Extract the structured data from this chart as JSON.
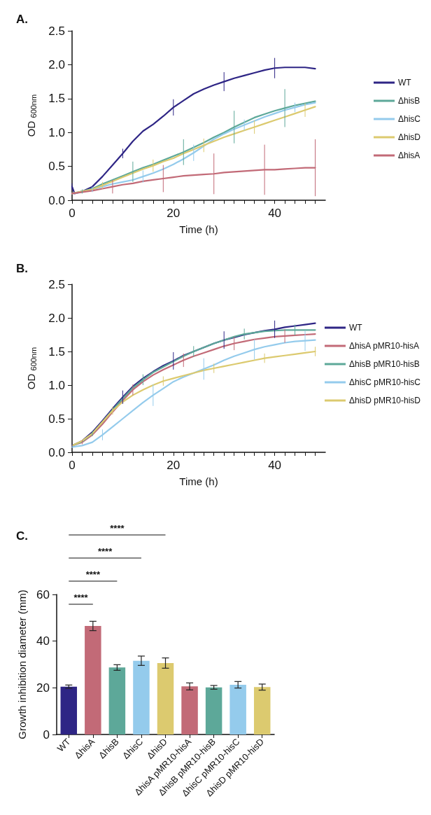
{
  "chart_data": [
    {
      "type": "line",
      "title": "A.",
      "xlabel": "Time (h)",
      "ylabel": "OD $_{600nm}$",
      "legend": "right",
      "marker": "none",
      "line_style": "solid",
      "xlim": [
        0,
        50
      ],
      "ylim": [
        0,
        2.5
      ],
      "xticks": [
        0,
        {
          "value": 2,
          "label": null
        },
        {
          "value": 4,
          "label": null
        },
        {
          "value": 6,
          "label": null
        },
        {
          "value": 8,
          "label": null
        },
        {
          "value": 10,
          "label": null
        },
        {
          "value": 12,
          "label": null
        },
        {
          "value": 14,
          "label": null
        },
        {
          "value": 16,
          "label": null
        },
        {
          "value": 18,
          "label": null
        },
        20,
        {
          "value": 22,
          "label": null
        },
        {
          "value": 24,
          "label": null
        },
        {
          "value": 26,
          "label": null
        },
        {
          "value": 28,
          "label": null
        },
        {
          "value": 30,
          "label": null
        },
        {
          "value": 32,
          "label": null
        },
        {
          "value": 34,
          "label": null
        },
        {
          "value": 36,
          "label": null
        },
        {
          "value": 38,
          "label": null
        },
        40,
        {
          "value": 42,
          "label": null
        },
        {
          "value": 44,
          "label": null
        },
        {
          "value": 46,
          "label": null
        },
        {
          "value": 48,
          "label": null
        }
      ],
      "yticks": [
        {
          "value": 0,
          "label": "0.0"
        },
        0.5,
        {
          "value": 1,
          "label": "1.0"
        },
        1.5,
        {
          "value": 2,
          "label": "2.0"
        },
        2.5
      ],
      "series": [
        {
          "name": "WT",
          "color": "#2e2585",
          "x": [
            0,
            0.5,
            2,
            4,
            6,
            8,
            10,
            12,
            14,
            16,
            18,
            20,
            22,
            24,
            26,
            28,
            30,
            32,
            34,
            36,
            38,
            40,
            42,
            44,
            46,
            48
          ],
          "values": [
            0.2,
            0.1,
            0.13,
            0.2,
            0.35,
            0.52,
            0.69,
            0.87,
            1.02,
            1.12,
            1.24,
            1.37,
            1.47,
            1.57,
            1.64,
            1.7,
            1.75,
            1.8,
            1.84,
            1.88,
            1.92,
            1.95,
            1.96,
            1.96,
            1.96,
            1.94
          ],
          "errors": [
            0.05,
            null,
            null,
            null,
            null,
            null,
            0.07,
            null,
            null,
            null,
            null,
            0.12,
            null,
            null,
            null,
            null,
            0.14,
            null,
            null,
            null,
            null,
            0.15,
            null,
            null,
            null,
            null
          ]
        },
        {
          "name": "ΔhisB",
          "color": "#5da899",
          "x": [
            0,
            2,
            4,
            6,
            8,
            10,
            12,
            14,
            16,
            18,
            20,
            22,
            24,
            26,
            28,
            30,
            32,
            34,
            36,
            38,
            40,
            42,
            44,
            46,
            48
          ],
          "values": [
            0.1,
            0.13,
            0.17,
            0.24,
            0.3,
            0.36,
            0.42,
            0.48,
            0.53,
            0.59,
            0.65,
            0.71,
            0.78,
            0.85,
            0.93,
            1.0,
            1.08,
            1.15,
            1.22,
            1.27,
            1.32,
            1.36,
            1.4,
            1.43,
            1.46
          ],
          "errors": [
            null,
            0.03,
            null,
            null,
            null,
            null,
            0.15,
            null,
            null,
            null,
            null,
            0.19,
            null,
            null,
            null,
            null,
            0.24,
            null,
            null,
            null,
            null,
            0.28,
            null,
            null,
            null
          ]
        },
        {
          "name": "ΔhisC",
          "color": "#94cbec",
          "x": [
            0,
            2,
            4,
            6,
            8,
            10,
            12,
            14,
            16,
            18,
            20,
            22,
            24,
            26,
            28,
            30,
            32,
            34,
            36,
            38,
            40,
            42,
            44,
            46,
            48
          ],
          "values": [
            0.1,
            0.12,
            0.16,
            0.2,
            0.24,
            0.27,
            0.3,
            0.35,
            0.4,
            0.46,
            0.53,
            0.61,
            0.7,
            0.8,
            0.9,
            0.98,
            1.05,
            1.11,
            1.17,
            1.23,
            1.28,
            1.33,
            1.37,
            1.41,
            1.44
          ],
          "errors": [
            null,
            null,
            0.04,
            null,
            null,
            null,
            null,
            0.09,
            null,
            null,
            null,
            null,
            0.12,
            null,
            null,
            null,
            null,
            0.08,
            null,
            null,
            null,
            null,
            0.07,
            null,
            null
          ]
        },
        {
          "name": "ΔhisD",
          "color": "#dcca6f",
          "x": [
            0,
            2,
            4,
            6,
            8,
            10,
            12,
            14,
            16,
            18,
            20,
            22,
            24,
            26,
            28,
            30,
            32,
            34,
            36,
            38,
            40,
            42,
            44,
            46,
            48
          ],
          "values": [
            0.1,
            0.13,
            0.16,
            0.22,
            0.28,
            0.34,
            0.4,
            0.46,
            0.51,
            0.57,
            0.62,
            0.69,
            0.75,
            0.81,
            0.87,
            0.93,
            0.98,
            1.03,
            1.08,
            1.13,
            1.18,
            1.23,
            1.28,
            1.33,
            1.38
          ],
          "errors": [
            null,
            null,
            null,
            0.05,
            null,
            null,
            null,
            null,
            0.09,
            null,
            null,
            null,
            null,
            0.1,
            null,
            null,
            null,
            null,
            0.1,
            null,
            null,
            null,
            null,
            0.1,
            null
          ]
        },
        {
          "name": "ΔhisA",
          "color": "#c26a77",
          "x": [
            0,
            2,
            4,
            6,
            8,
            10,
            12,
            14,
            16,
            18,
            20,
            22,
            24,
            26,
            28,
            30,
            32,
            34,
            36,
            38,
            40,
            42,
            44,
            46,
            48
          ],
          "values": [
            0.1,
            0.12,
            0.14,
            0.17,
            0.2,
            0.23,
            0.25,
            0.28,
            0.3,
            0.32,
            0.34,
            0.36,
            0.37,
            0.38,
            0.39,
            0.41,
            0.42,
            0.43,
            0.44,
            0.45,
            0.45,
            0.46,
            0.47,
            0.48,
            0.48
          ],
          "errors": [
            null,
            null,
            null,
            null,
            0.1,
            null,
            null,
            null,
            null,
            0.2,
            null,
            null,
            null,
            null,
            0.3,
            null,
            null,
            null,
            null,
            0.37,
            null,
            null,
            null,
            null,
            0.42
          ]
        }
      ]
    },
    {
      "type": "line",
      "title": "B.",
      "xlabel": "Time (h)",
      "ylabel": "OD $_{600nm}$",
      "legend": "right",
      "marker": "none",
      "line_style": "solid",
      "xlim": [
        0,
        50
      ],
      "ylim": [
        0,
        2.5
      ],
      "xticks": [
        0,
        {
          "value": 2,
          "label": null
        },
        {
          "value": 4,
          "label": null
        },
        {
          "value": 6,
          "label": null
        },
        {
          "value": 8,
          "label": null
        },
        {
          "value": 10,
          "label": null
        },
        {
          "value": 12,
          "label": null
        },
        {
          "value": 14,
          "label": null
        },
        {
          "value": 16,
          "label": null
        },
        {
          "value": 18,
          "label": null
        },
        20,
        {
          "value": 22,
          "label": null
        },
        {
          "value": 24,
          "label": null
        },
        {
          "value": 26,
          "label": null
        },
        {
          "value": 28,
          "label": null
        },
        {
          "value": 30,
          "label": null
        },
        {
          "value": 32,
          "label": null
        },
        {
          "value": 34,
          "label": null
        },
        {
          "value": 36,
          "label": null
        },
        {
          "value": 38,
          "label": null
        },
        40,
        {
          "value": 42,
          "label": null
        },
        {
          "value": 44,
          "label": null
        },
        {
          "value": 46,
          "label": null
        },
        {
          "value": 48,
          "label": null
        }
      ],
      "yticks": [
        {
          "value": 0,
          "label": "0.0"
        },
        0.5,
        {
          "value": 1,
          "label": "1.0"
        },
        1.5,
        {
          "value": 2,
          "label": "2.0"
        },
        2.5
      ],
      "series": [
        {
          "name": "WT",
          "color": "#2e2585",
          "x": [
            0,
            2,
            4,
            6,
            8,
            10,
            12,
            14,
            16,
            18,
            20,
            22,
            24,
            26,
            28,
            30,
            32,
            34,
            36,
            38,
            40,
            42,
            44,
            46,
            48
          ],
          "values": [
            0.1,
            0.17,
            0.3,
            0.47,
            0.65,
            0.82,
            0.98,
            1.1,
            1.2,
            1.29,
            1.36,
            1.44,
            1.5,
            1.56,
            1.62,
            1.67,
            1.71,
            1.75,
            1.78,
            1.81,
            1.83,
            1.86,
            1.88,
            1.9,
            1.92
          ],
          "errors": [
            0.02,
            null,
            null,
            null,
            null,
            0.1,
            null,
            null,
            null,
            null,
            0.13,
            null,
            null,
            null,
            null,
            0.13,
            null,
            null,
            null,
            null,
            0.13,
            null,
            null,
            null,
            null
          ]
        },
        {
          "name": "ΔhisA pMR10-hisA",
          "color": "#c26a77",
          "x": [
            0,
            2,
            4,
            6,
            8,
            10,
            12,
            14,
            16,
            18,
            20,
            22,
            24,
            26,
            28,
            30,
            32,
            34,
            36,
            38,
            40,
            42,
            44,
            46,
            48
          ],
          "values": [
            0.1,
            0.15,
            0.26,
            0.42,
            0.6,
            0.77,
            0.93,
            1.05,
            1.15,
            1.23,
            1.3,
            1.37,
            1.43,
            1.48,
            1.53,
            1.58,
            1.62,
            1.65,
            1.68,
            1.7,
            1.72,
            1.73,
            1.74,
            1.75,
            1.76
          ],
          "errors": [
            null,
            0.03,
            null,
            null,
            null,
            null,
            0.08,
            null,
            null,
            null,
            null,
            0.1,
            null,
            null,
            null,
            null,
            0.1,
            null,
            null,
            null,
            null,
            0.1,
            null,
            null,
            null
          ]
        },
        {
          "name": "ΔhisB pMR10-hisB",
          "color": "#5da899",
          "x": [
            0,
            2,
            4,
            6,
            8,
            10,
            12,
            14,
            16,
            18,
            20,
            22,
            24,
            26,
            28,
            30,
            32,
            34,
            36,
            38,
            40,
            42,
            44,
            46,
            48
          ],
          "values": [
            0.1,
            0.16,
            0.28,
            0.45,
            0.63,
            0.8,
            0.96,
            1.08,
            1.19,
            1.27,
            1.35,
            1.43,
            1.5,
            1.56,
            1.62,
            1.67,
            1.72,
            1.76,
            1.78,
            1.8,
            1.81,
            1.82,
            1.82,
            1.82,
            1.82
          ],
          "errors": [
            null,
            null,
            0.04,
            null,
            null,
            null,
            null,
            0.08,
            null,
            null,
            null,
            null,
            0.08,
            null,
            null,
            null,
            null,
            0.08,
            null,
            null,
            null,
            null,
            0.08,
            null,
            null
          ]
        },
        {
          "name": "ΔhisC pMR10-hisC",
          "color": "#94cbec",
          "x": [
            0,
            2,
            4,
            6,
            8,
            10,
            12,
            14,
            16,
            18,
            20,
            22,
            24,
            26,
            28,
            30,
            32,
            34,
            36,
            38,
            40,
            42,
            44,
            46,
            48
          ],
          "values": [
            0.08,
            0.1,
            0.15,
            0.26,
            0.38,
            0.5,
            0.62,
            0.74,
            0.85,
            0.95,
            1.05,
            1.12,
            1.18,
            1.24,
            1.3,
            1.37,
            1.43,
            1.48,
            1.53,
            1.57,
            1.6,
            1.63,
            1.65,
            1.66,
            1.67
          ],
          "errors": [
            null,
            null,
            null,
            0.08,
            null,
            null,
            null,
            null,
            0.16,
            null,
            null,
            null,
            null,
            0.16,
            null,
            null,
            null,
            null,
            0.15,
            null,
            null,
            null,
            null,
            0.15,
            null
          ]
        },
        {
          "name": "ΔhisD pMR10-hisD",
          "color": "#dcca6f",
          "x": [
            0,
            2,
            4,
            6,
            8,
            10,
            12,
            14,
            16,
            18,
            20,
            22,
            24,
            26,
            28,
            30,
            32,
            34,
            36,
            38,
            40,
            42,
            44,
            46,
            48
          ],
          "values": [
            0.1,
            0.17,
            0.28,
            0.45,
            0.62,
            0.75,
            0.85,
            0.93,
            1.0,
            1.06,
            1.1,
            1.14,
            1.18,
            1.22,
            1.25,
            1.28,
            1.31,
            1.34,
            1.37,
            1.4,
            1.42,
            1.44,
            1.46,
            1.48,
            1.5
          ],
          "errors": [
            null,
            null,
            null,
            null,
            0.06,
            null,
            null,
            null,
            null,
            0.07,
            null,
            null,
            null,
            null,
            0.07,
            null,
            null,
            null,
            null,
            0.07,
            null,
            null,
            null,
            null,
            0.07
          ]
        }
      ]
    },
    {
      "type": "bar",
      "title": "C.",
      "ylabel": "Growth inhibition diameter (mm)",
      "categories": [
        "WT",
        "ΔhisA",
        "ΔhisB",
        "ΔhisC",
        "ΔhisD",
        "ΔhisA pMR10-hisA",
        "ΔhisB pMR10-hisB",
        "ΔhisC pMR10-hisC",
        "ΔhisD pMR10-hisD"
      ],
      "values": [
        20.5,
        46.5,
        28.7,
        31.6,
        30.6,
        20.6,
        20.2,
        21.3,
        20.3
      ],
      "errors": [
        0.7,
        2,
        1.2,
        2,
        2.2,
        1.5,
        0.8,
        1.4,
        1.3
      ],
      "colors": [
        "#2e2585",
        "#c26a77",
        "#5da899",
        "#94cbec",
        "#dcca6f",
        "#c26a77",
        "#5da899",
        "#94cbec",
        "#dcca6f"
      ],
      "ylim": [
        0,
        60
      ],
      "yticks": [
        0,
        20,
        40,
        60
      ],
      "annotations": [
        "****",
        "****",
        "****",
        "****"
      ]
    }
  ]
}
